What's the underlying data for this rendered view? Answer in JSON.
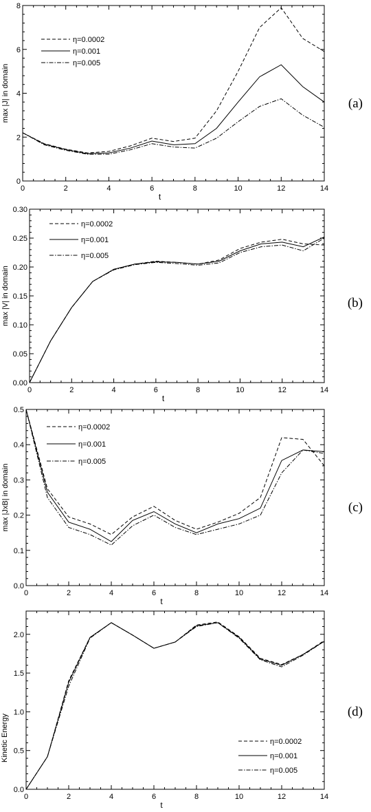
{
  "chart_data": [
    {
      "type": "line",
      "panel_label": "(a)",
      "xlabel": "t",
      "ylabel": "max |J| in domain",
      "xlim": [
        0,
        14
      ],
      "ylim": [
        0,
        8
      ],
      "xticks": [
        0,
        2,
        4,
        6,
        8,
        10,
        12,
        14
      ],
      "yticks": [
        0,
        2,
        4,
        6,
        8
      ],
      "ytick_decimals": 0,
      "grid": false,
      "legend_position": "top-left",
      "x": [
        0,
        1,
        2,
        3,
        4,
        5,
        6,
        7,
        8,
        9,
        10,
        11,
        12,
        13,
        14
      ],
      "series": [
        {
          "name": "η=0.0002",
          "style": "dashed",
          "values": [
            2.2,
            1.7,
            1.45,
            1.28,
            1.35,
            1.6,
            1.95,
            1.8,
            1.95,
            3.2,
            5.0,
            7.0,
            7.9,
            6.5,
            5.9
          ]
        },
        {
          "name": "η=0.001",
          "style": "solid",
          "values": [
            2.2,
            1.68,
            1.43,
            1.25,
            1.28,
            1.5,
            1.82,
            1.65,
            1.7,
            2.4,
            3.6,
            4.75,
            5.3,
            4.3,
            3.6
          ]
        },
        {
          "name": "η=0.005",
          "style": "dashdot",
          "values": [
            2.2,
            1.65,
            1.4,
            1.22,
            1.22,
            1.42,
            1.7,
            1.55,
            1.5,
            1.95,
            2.7,
            3.4,
            3.75,
            3.0,
            2.45
          ]
        }
      ]
    },
    {
      "type": "line",
      "panel_label": "(b)",
      "xlabel": "t",
      "ylabel": "max |V| in domain",
      "xlim": [
        0,
        14
      ],
      "ylim": [
        0,
        0.3
      ],
      "xticks": [
        0,
        2,
        4,
        6,
        8,
        10,
        12,
        14
      ],
      "yticks": [
        0,
        0.05,
        0.1,
        0.15,
        0.2,
        0.25,
        0.3
      ],
      "ytick_decimals": 2,
      "grid": false,
      "legend_position": "top-left",
      "x": [
        0,
        1,
        2,
        3,
        4,
        5,
        6,
        7,
        8,
        9,
        10,
        11,
        12,
        13,
        14
      ],
      "series": [
        {
          "name": "η=0.0002",
          "style": "dashed",
          "values": [
            0.0,
            0.072,
            0.13,
            0.175,
            0.196,
            0.205,
            0.21,
            0.208,
            0.205,
            0.212,
            0.232,
            0.243,
            0.248,
            0.24,
            0.238
          ]
        },
        {
          "name": "η=0.001",
          "style": "solid",
          "values": [
            0.0,
            0.072,
            0.13,
            0.175,
            0.196,
            0.205,
            0.209,
            0.208,
            0.205,
            0.21,
            0.228,
            0.24,
            0.243,
            0.235,
            0.252
          ]
        },
        {
          "name": "η=0.005",
          "style": "dashdot",
          "values": [
            0.0,
            0.072,
            0.13,
            0.175,
            0.195,
            0.204,
            0.208,
            0.206,
            0.203,
            0.207,
            0.225,
            0.235,
            0.238,
            0.228,
            0.25
          ]
        }
      ]
    },
    {
      "type": "line",
      "panel_label": "(c)",
      "xlabel": "t",
      "ylabel": "max |JxB| in domain",
      "xlim": [
        0,
        14
      ],
      "ylim": [
        0,
        0.5
      ],
      "xticks": [
        0,
        2,
        4,
        6,
        8,
        10,
        12,
        14
      ],
      "yticks": [
        0,
        0.1,
        0.2,
        0.3,
        0.4,
        0.5
      ],
      "ytick_decimals": 1,
      "grid": false,
      "legend_position": "top-left",
      "x": [
        0,
        1,
        2,
        3,
        4,
        5,
        6,
        7,
        8,
        9,
        10,
        11,
        12,
        13,
        14
      ],
      "series": [
        {
          "name": "η=0.0002",
          "style": "dashed",
          "values": [
            0.5,
            0.275,
            0.195,
            0.175,
            0.145,
            0.195,
            0.225,
            0.185,
            0.16,
            0.18,
            0.205,
            0.25,
            0.42,
            0.415,
            0.34
          ]
        },
        {
          "name": "η=0.001",
          "style": "solid",
          "values": [
            0.5,
            0.265,
            0.18,
            0.16,
            0.125,
            0.185,
            0.21,
            0.175,
            0.15,
            0.175,
            0.19,
            0.22,
            0.355,
            0.385,
            0.38
          ]
        },
        {
          "name": "η=0.005",
          "style": "dashdot",
          "values": [
            0.5,
            0.25,
            0.165,
            0.145,
            0.115,
            0.17,
            0.2,
            0.165,
            0.145,
            0.16,
            0.175,
            0.2,
            0.32,
            0.385,
            0.375
          ]
        }
      ]
    },
    {
      "type": "line",
      "panel_label": "(d)",
      "xlabel": "t",
      "ylabel": "Kinetic Energy",
      "xlim": [
        0,
        14
      ],
      "ylim": [
        0,
        2.3
      ],
      "xticks": [
        0,
        2,
        4,
        6,
        8,
        10,
        12,
        14
      ],
      "yticks": [
        0,
        0.5,
        1.0,
        1.5,
        2.0
      ],
      "ytick_decimals": 1,
      "grid": false,
      "legend_position": "bottom-right",
      "x": [
        0,
        1,
        2,
        3,
        4,
        5,
        6,
        7,
        8,
        9,
        10,
        11,
        12,
        13,
        14
      ],
      "series": [
        {
          "name": "η=0.0002",
          "style": "dashed",
          "values": [
            0.0,
            0.42,
            1.4,
            1.96,
            2.15,
            1.99,
            1.82,
            1.9,
            2.12,
            2.16,
            1.97,
            1.69,
            1.61,
            1.74,
            1.92
          ]
        },
        {
          "name": "η=0.001",
          "style": "solid",
          "values": [
            0.0,
            0.42,
            1.38,
            1.96,
            2.15,
            1.99,
            1.82,
            1.9,
            2.11,
            2.15,
            1.96,
            1.68,
            1.6,
            1.74,
            1.91
          ]
        },
        {
          "name": "η=0.005",
          "style": "dashdot",
          "values": [
            0.0,
            0.42,
            1.33,
            1.95,
            2.15,
            1.99,
            1.82,
            1.9,
            2.1,
            2.15,
            1.95,
            1.67,
            1.58,
            1.73,
            1.91
          ]
        }
      ]
    }
  ]
}
